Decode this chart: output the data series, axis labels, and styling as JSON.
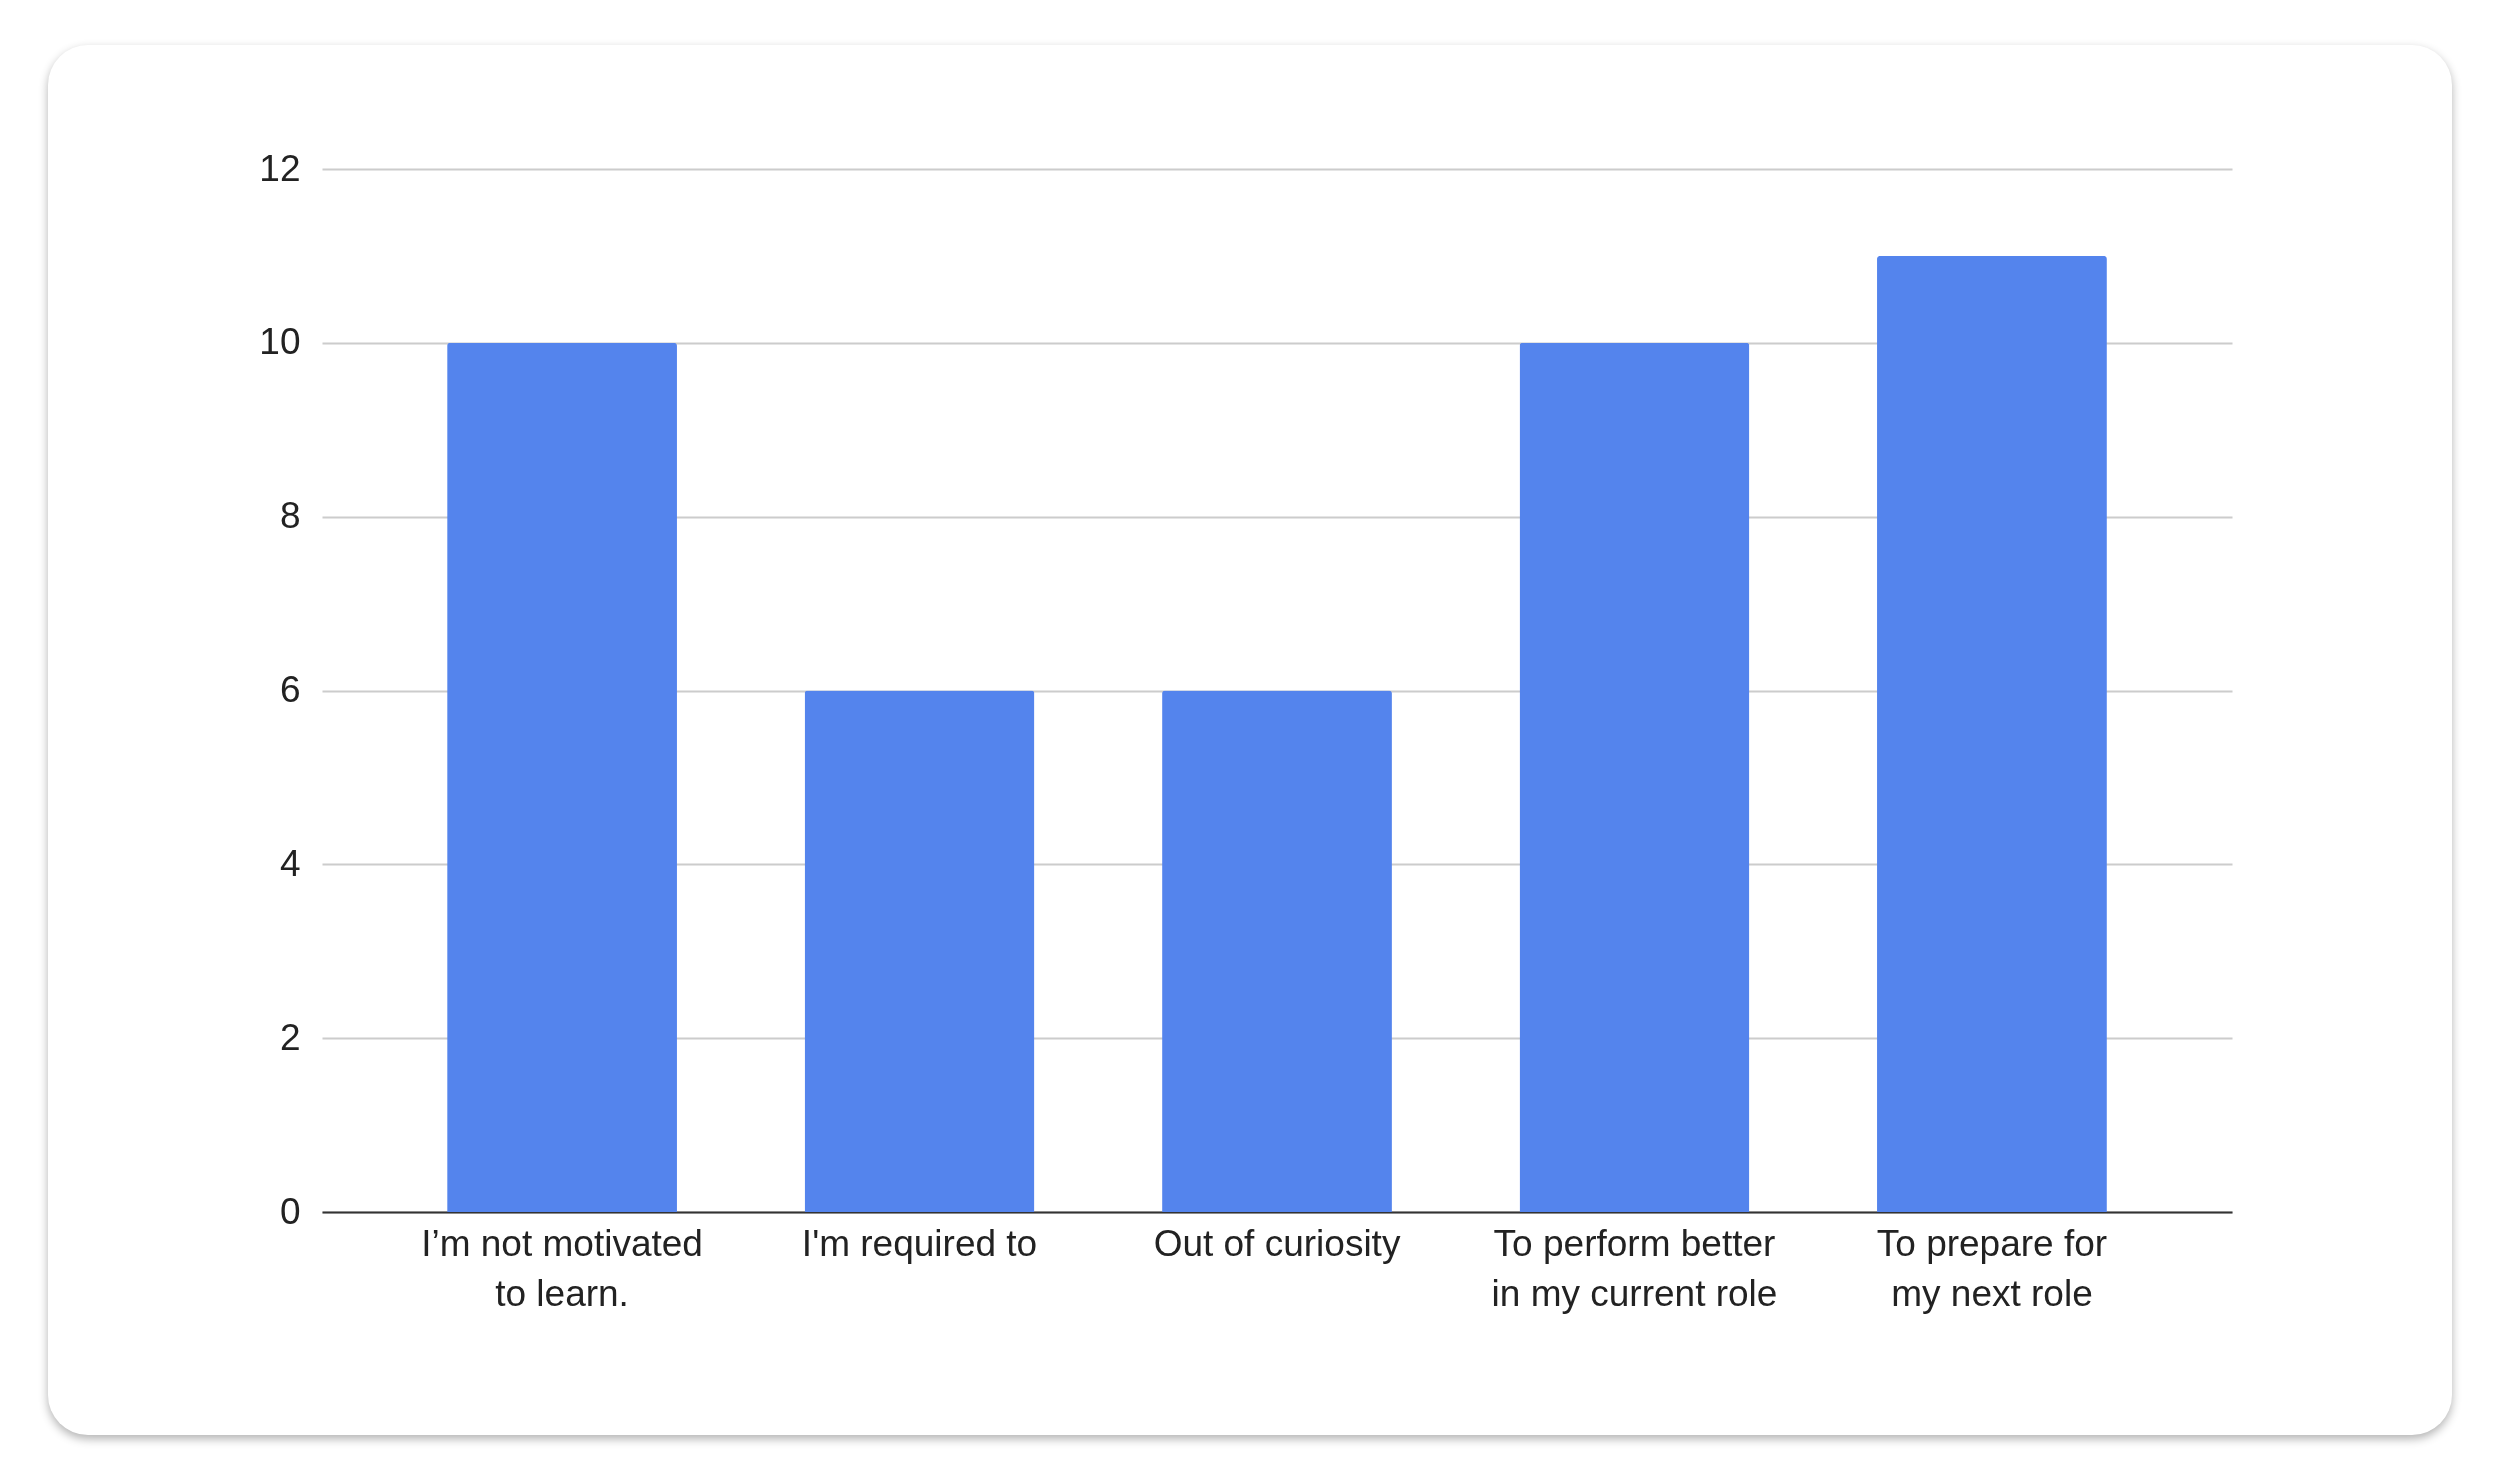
{
  "chart_data": {
    "type": "bar",
    "categories": [
      "I’m not motivated to learn.",
      "I'm required to",
      "Out of curiosity",
      "To perform better in my current role",
      "To prepare for my next role"
    ],
    "values": [
      10,
      6,
      6,
      10,
      11
    ],
    "color": "#5484ed",
    "ylim": [
      0,
      12
    ],
    "yticks": [
      0,
      2,
      4,
      6,
      8,
      10,
      12
    ],
    "grid": "y"
  }
}
